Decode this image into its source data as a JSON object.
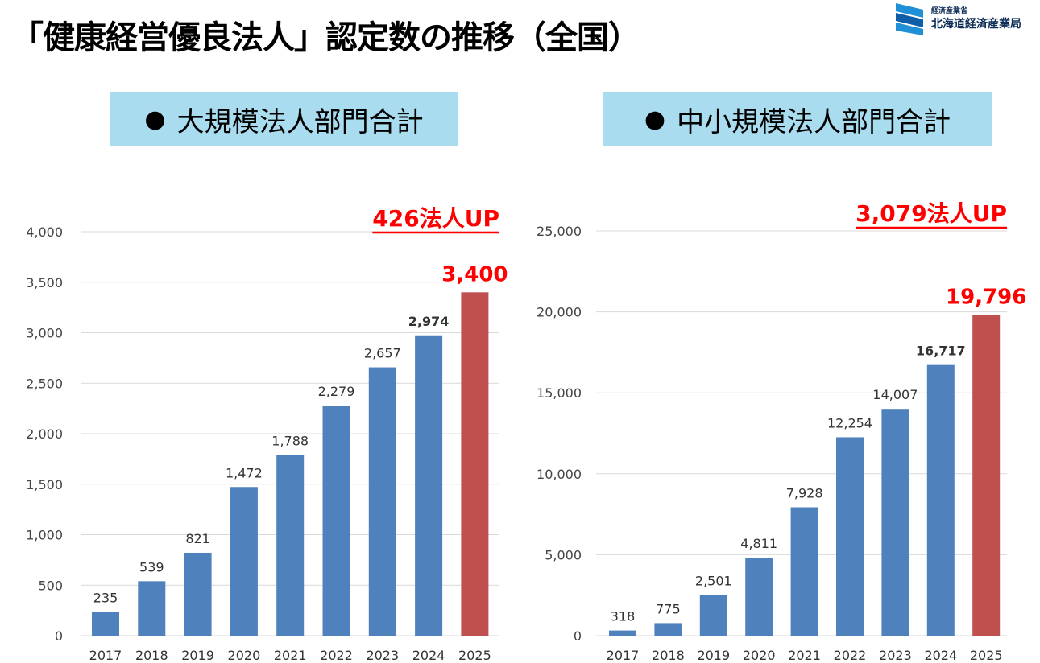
{
  "page": {
    "title": "「健康経営優良法人」認定数の推移（全国）",
    "ministry": "経済産業省",
    "bureau": "北海道経済産業局",
    "logo_icon": "meti-logo-icon",
    "bullet": "●"
  },
  "colors": {
    "bar": "#4f81bd",
    "highlight_bar": "#c0504d",
    "annotation": "#ff0000",
    "section_bg": "#a9dcee"
  },
  "chart_data": [
    {
      "type": "bar",
      "section_label": "大規模法人部門合計",
      "annotation": "426法人UP",
      "categories": [
        "2017",
        "2018",
        "2019",
        "2020",
        "2021",
        "2022",
        "2023",
        "2024",
        "2025"
      ],
      "values": [
        235,
        539,
        821,
        1472,
        1788,
        2279,
        2657,
        2974,
        3400
      ],
      "data_labels": [
        "235",
        "539",
        "821",
        "1,472",
        "1,788",
        "2,279",
        "2,657",
        "2,974",
        "3,400"
      ],
      "ylim": [
        0,
        4000
      ],
      "yticks": [
        0,
        500,
        1000,
        1500,
        2000,
        2500,
        3000,
        3500,
        4000
      ],
      "ytick_labels": [
        "0",
        "500",
        "1,000",
        "1,500",
        "2,000",
        "2,500",
        "3,000",
        "3,500",
        "4,000"
      ],
      "highlight_index": 8,
      "bold_label_index": 7,
      "grid": true
    },
    {
      "type": "bar",
      "section_label": "中小規模法人部門合計",
      "annotation": "3,079法人UP",
      "categories": [
        "2017",
        "2018",
        "2019",
        "2020",
        "2021",
        "2022",
        "2023",
        "2024",
        "2025"
      ],
      "values": [
        318,
        775,
        2501,
        4811,
        7928,
        12254,
        14007,
        16717,
        19796
      ],
      "data_labels": [
        "318",
        "775",
        "2,501",
        "4,811",
        "7,928",
        "12,254",
        "14,007",
        "16,717",
        "19,796"
      ],
      "ylim": [
        0,
        25000
      ],
      "yticks": [
        0,
        5000,
        10000,
        15000,
        20000,
        25000
      ],
      "ytick_labels": [
        "0",
        "5,000",
        "10,000",
        "15,000",
        "20,000",
        "25,000"
      ],
      "highlight_index": 8,
      "bold_label_index": 7,
      "grid": true
    }
  ]
}
